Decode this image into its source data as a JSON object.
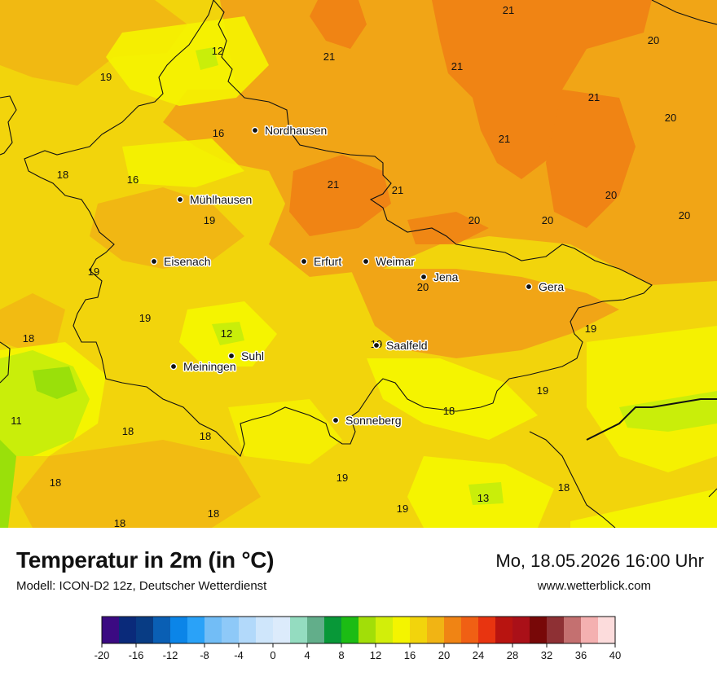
{
  "title": "Temperatur in 2m (in °C)",
  "model": "Modell: ICON-D2 12z, Deutscher Wetterdienst",
  "datetime": "Mo, 18.05.2026 16:00 Uhr",
  "website": "www.wetterblick.com",
  "colors": {
    "field_base": "#f2d40c",
    "warm_orange": "#f1a516",
    "hot_orange": "#f08414",
    "cool_yellow": "#f5f400",
    "light_green": "#c9ee0a",
    "green": "#9ae00a"
  },
  "cities": [
    {
      "name": "Nordhausen"
    },
    {
      "name": "Mühlhausen"
    },
    {
      "name": "Eisenach"
    },
    {
      "name": "Erfurt"
    },
    {
      "name": "Weimar"
    },
    {
      "name": "Jena"
    },
    {
      "name": "Gera"
    },
    {
      "name": "Suhl"
    },
    {
      "name": "Meiningen"
    },
    {
      "name": "Saalfeld"
    },
    {
      "name": "Sonneberg"
    }
  ],
  "values": [
    "21",
    "12",
    "21",
    "21",
    "20",
    "19",
    "21",
    "20",
    "16",
    "21",
    "18",
    "16",
    "21",
    "19",
    "21",
    "20",
    "20",
    "20",
    "19",
    "20",
    "18",
    "19",
    "12",
    "20",
    "19",
    "19",
    "11",
    "18",
    "18",
    "18",
    "19",
    "19",
    "18",
    "18",
    "19",
    "13",
    "18",
    "18"
  ],
  "legend": {
    "colors": [
      "#3b0a82",
      "#0a2a7a",
      "#083c84",
      "#0a5fb4",
      "#0b85e8",
      "#2aa2f8",
      "#72bdf6",
      "#8ec9f8",
      "#b2d9fa",
      "#cfe6fb",
      "#dcebfb",
      "#94dcc0",
      "#62ae8a",
      "#089838",
      "#1cbc14",
      "#a2de08",
      "#d2ee0a",
      "#f4f400",
      "#f2d40c",
      "#f1b414",
      "#f08414",
      "#f06014",
      "#e83410",
      "#b81410",
      "#aa1018",
      "#780808",
      "#8e3034",
      "#c47070",
      "#f4b0b0",
      "#fcdcdc"
    ],
    "ticks": [
      "-20",
      "-16",
      "-12",
      "-8",
      "-4",
      "0",
      "4",
      "8",
      "12",
      "16",
      "20",
      "24",
      "28",
      "32",
      "36",
      "40"
    ]
  }
}
